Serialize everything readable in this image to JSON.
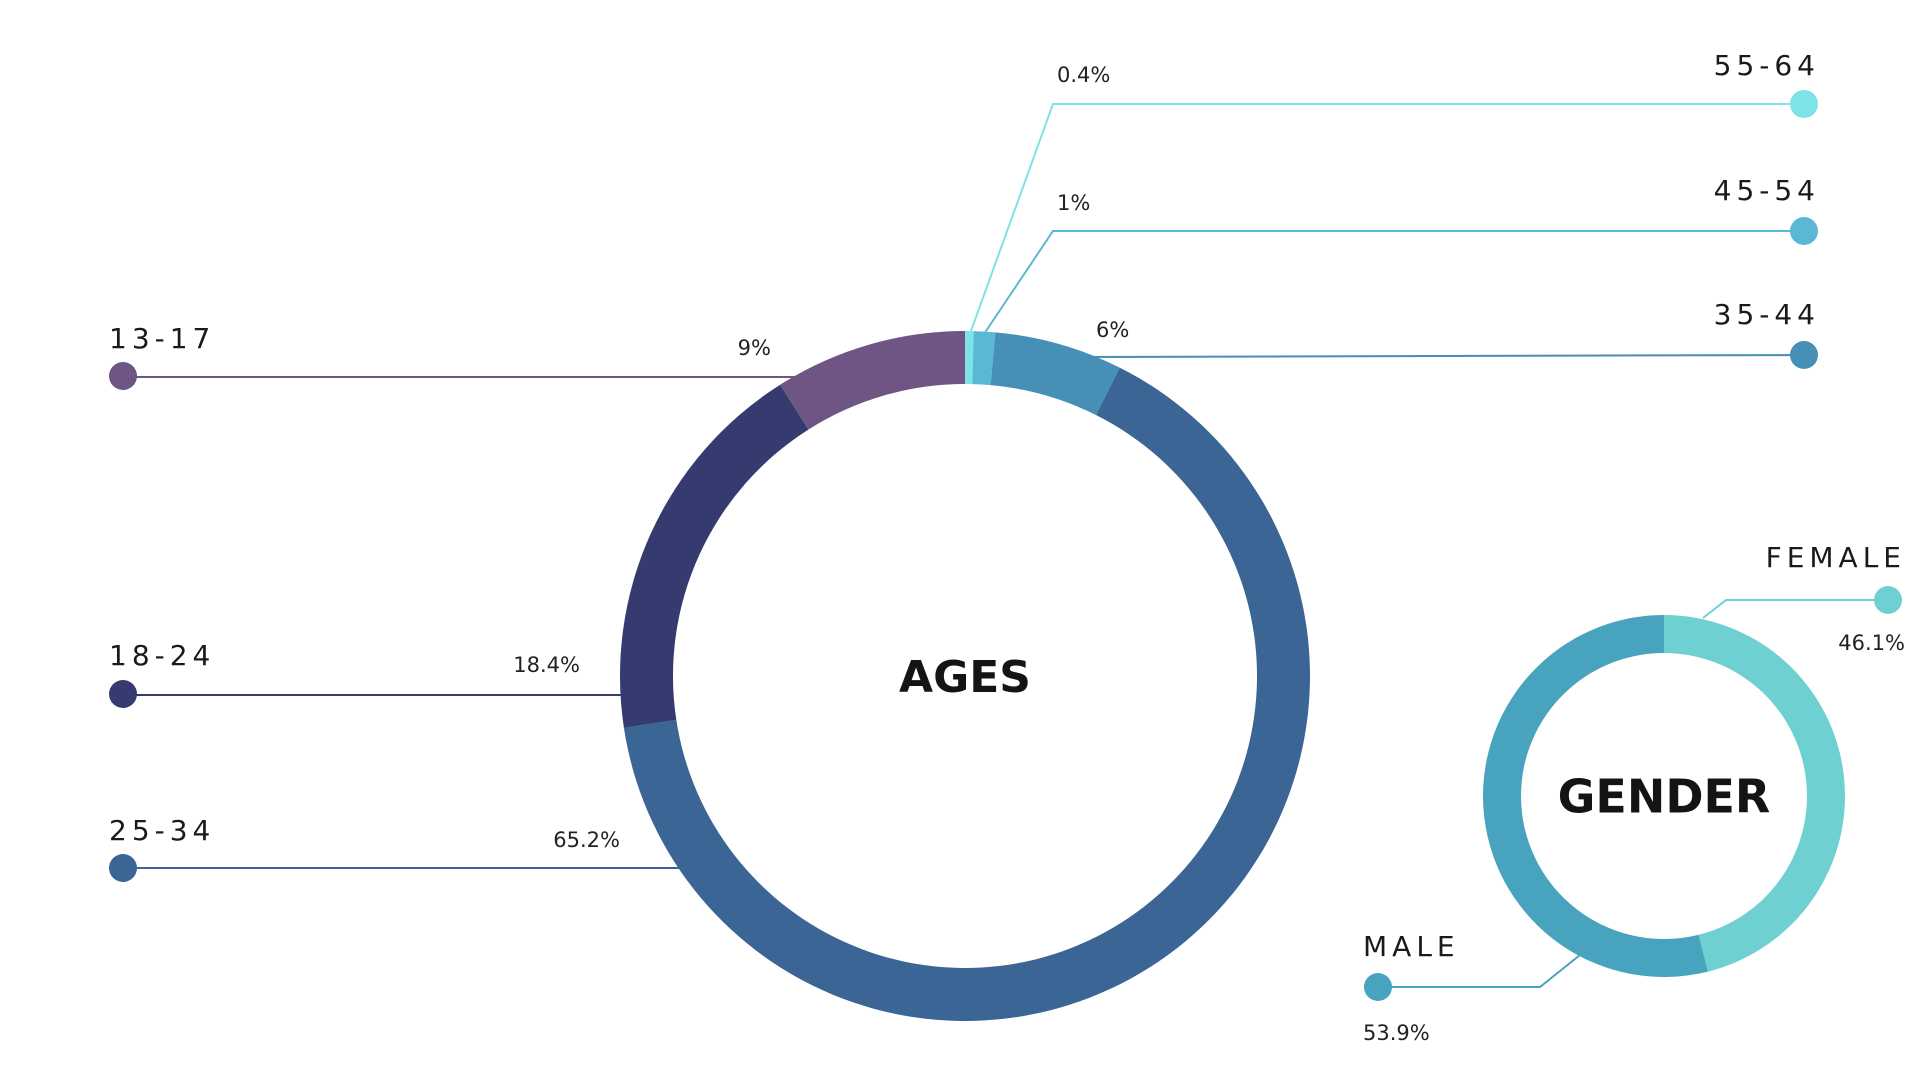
{
  "chart_data": [
    {
      "type": "pie",
      "variant": "donut",
      "title": "AGES",
      "start": "top",
      "direction": "clockwise",
      "categories": [
        "55-64",
        "45-54",
        "35-44",
        "25-34",
        "18-24",
        "13-17"
      ],
      "values": [
        0.4,
        1,
        6,
        65.2,
        18.4,
        9
      ],
      "labels": [
        "0.4%",
        "1%",
        "6%",
        "65.2%",
        "18.4%",
        "9%"
      ],
      "colors": [
        "#7ee3e6",
        "#5ab8d4",
        "#4690b8",
        "#3b6595",
        "#353b6e",
        "#6e5584"
      ]
    },
    {
      "type": "pie",
      "variant": "donut",
      "title": "GENDER",
      "start": "top",
      "direction": "clockwise",
      "categories": [
        "FEMALE",
        "MALE"
      ],
      "values": [
        46.1,
        53.9
      ],
      "labels": [
        "46.1%",
        "53.9%"
      ],
      "colors": [
        "#6fd0d2",
        "#48a4be"
      ]
    }
  ]
}
